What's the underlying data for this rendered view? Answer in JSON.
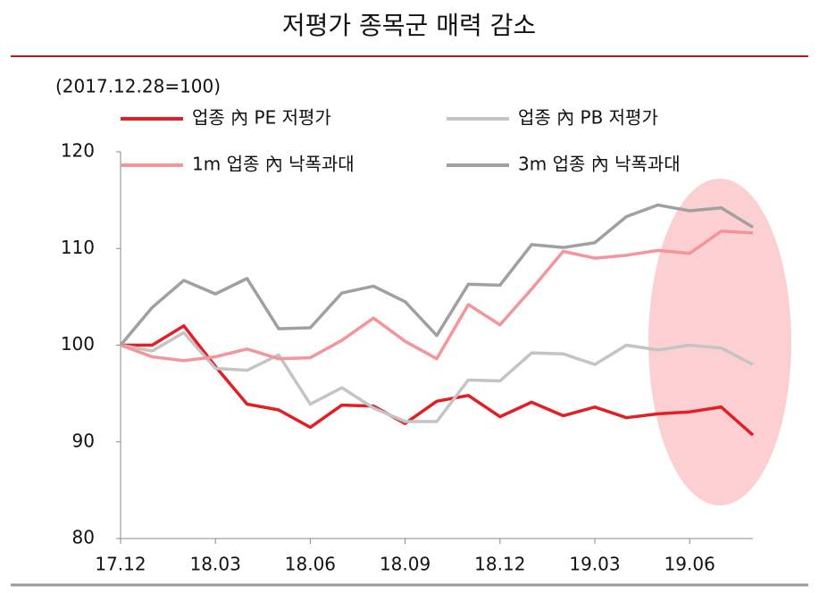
{
  "chart_data": {
    "type": "line",
    "title": "저평가 종목군 매력 감소",
    "subtitle": "(2017.12.28=100)",
    "categories": [
      "17.12",
      null,
      null,
      "18.03",
      null,
      null,
      "18.06",
      null,
      null,
      "18.09",
      null,
      null,
      "18.12",
      null,
      null,
      "19.03",
      null,
      null,
      "19.06",
      null,
      null
    ],
    "series": [
      {
        "name": "업종 內 PE 저평가",
        "color": "#e31e24",
        "values": [
          100,
          100,
          102,
          97.8,
          93.9,
          93.3,
          91.5,
          93.8,
          93.7,
          91.9,
          94.2,
          94.8,
          92.6,
          94.1,
          92.7,
          93.6,
          92.5,
          92.9,
          93.1,
          93.6,
          90.7
        ]
      },
      {
        "name": "업종 內 PB 저평가",
        "color": "#c4c4c4",
        "values": [
          100,
          99.4,
          101.3,
          97.6,
          97.4,
          99,
          93.9,
          95.6,
          93.5,
          92.1,
          92.1,
          96.4,
          96.3,
          99.2,
          99.1,
          98,
          100,
          99.5,
          100,
          99.7,
          98
        ]
      },
      {
        "name": "1m 업종 內 낙폭과대",
        "color": "#f4959a",
        "values": [
          100,
          98.8,
          98.4,
          98.8,
          99.6,
          98.6,
          98.7,
          100.5,
          102.8,
          100.4,
          98.6,
          104.2,
          102.1,
          105.8,
          109.7,
          109,
          109.3,
          109.8,
          109.5,
          111.8,
          111.6
        ]
      },
      {
        "name": "3m 업종 內 낙폭과대",
        "color": "#a0a0a0",
        "values": [
          100,
          103.9,
          106.7,
          105.3,
          106.9,
          101.7,
          101.8,
          105.4,
          106.1,
          104.5,
          101,
          106.3,
          106.2,
          110.4,
          110.1,
          110.6,
          113.3,
          114.5,
          113.9,
          114.2,
          112.2
        ]
      }
    ],
    "ylim": [
      80,
      120
    ],
    "yticks": [
      80,
      90,
      100,
      110,
      120
    ],
    "grid": false
  }
}
